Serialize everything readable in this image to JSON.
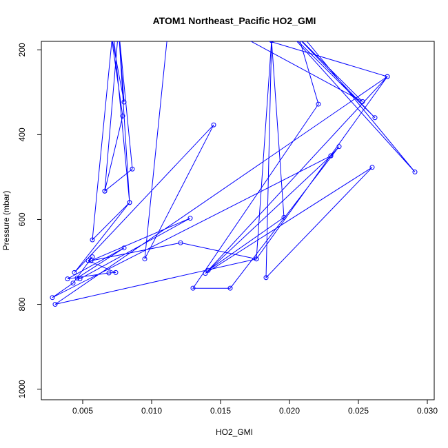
{
  "chart_data": {
    "type": "line",
    "title": "ATOM1 Northeast_Pacific HO2_GMI",
    "xlabel": "HO2_GMI",
    "ylabel": "Pressure (mbar)",
    "xlim": [
      0.002,
      0.0305
    ],
    "ylim": [
      1025,
      180
    ],
    "y_reversed": true,
    "x_ticks": [
      0.005,
      0.01,
      0.015,
      0.02,
      0.025,
      0.03
    ],
    "x_tick_labels": [
      "0.005",
      "0.010",
      "0.015",
      "0.020",
      "0.025",
      "0.030"
    ],
    "y_ticks": [
      200,
      400,
      600,
      800,
      1000
    ],
    "y_tick_labels": [
      "200",
      "400",
      "600",
      "800",
      "1000"
    ],
    "marker": "open-circle",
    "grid": false,
    "series": [
      {
        "color": "#0000ff",
        "points": [
          [
            0.0066,
            533
          ],
          [
            0.0076,
            150
          ],
          [
            0.008,
            323
          ],
          [
            0.007,
            150
          ],
          [
            0.0079,
            356
          ],
          [
            0.0066,
            533
          ],
          [
            0.0086,
            481
          ],
          [
            0.0076,
            150
          ],
          [
            0.0084,
            560
          ],
          [
            0.0072,
            150
          ],
          [
            0.0057,
            648
          ],
          [
            0.0084,
            560
          ],
          [
            0.0044,
            725
          ],
          [
            0.0145,
            377
          ],
          [
            0.0095,
            693
          ],
          [
            0.0112,
            150
          ],
          [
            0.0187,
            178
          ],
          [
            0.0176,
            693
          ],
          [
            0.0271,
            263
          ],
          [
            0.0155,
            150
          ],
          [
            0.0253,
            322
          ],
          [
            0.02,
            150
          ],
          [
            0.0262,
            360
          ],
          [
            0.0197,
            150
          ],
          [
            0.0291,
            488
          ],
          [
            0.0205,
            150
          ],
          [
            0.0221,
            328
          ],
          [
            0.013,
            762
          ],
          [
            0.0157,
            762
          ],
          [
            0.0236,
            428
          ],
          [
            0.023,
            450
          ],
          [
            0.0139,
            727
          ],
          [
            0.026,
            477
          ],
          [
            0.0183,
            737
          ],
          [
            0.0187,
            178
          ],
          [
            0.0196,
            595
          ],
          [
            0.0141,
            720
          ],
          [
            0.0271,
            263
          ],
          [
            0.003,
            800
          ],
          [
            0.0176,
            693
          ],
          [
            0.0121,
            655
          ],
          [
            0.0056,
            697
          ],
          [
            0.0128,
            597
          ],
          [
            0.0048,
            740
          ],
          [
            0.0046,
            738
          ],
          [
            0.008,
            667
          ],
          [
            0.0039,
            740
          ],
          [
            0.0069,
            726
          ],
          [
            0.0074,
            725
          ],
          [
            0.0054,
            697
          ],
          [
            0.0057,
            688
          ],
          [
            0.0043,
            750
          ],
          [
            0.0028,
            784
          ],
          [
            0.023,
            450
          ]
        ]
      }
    ]
  }
}
